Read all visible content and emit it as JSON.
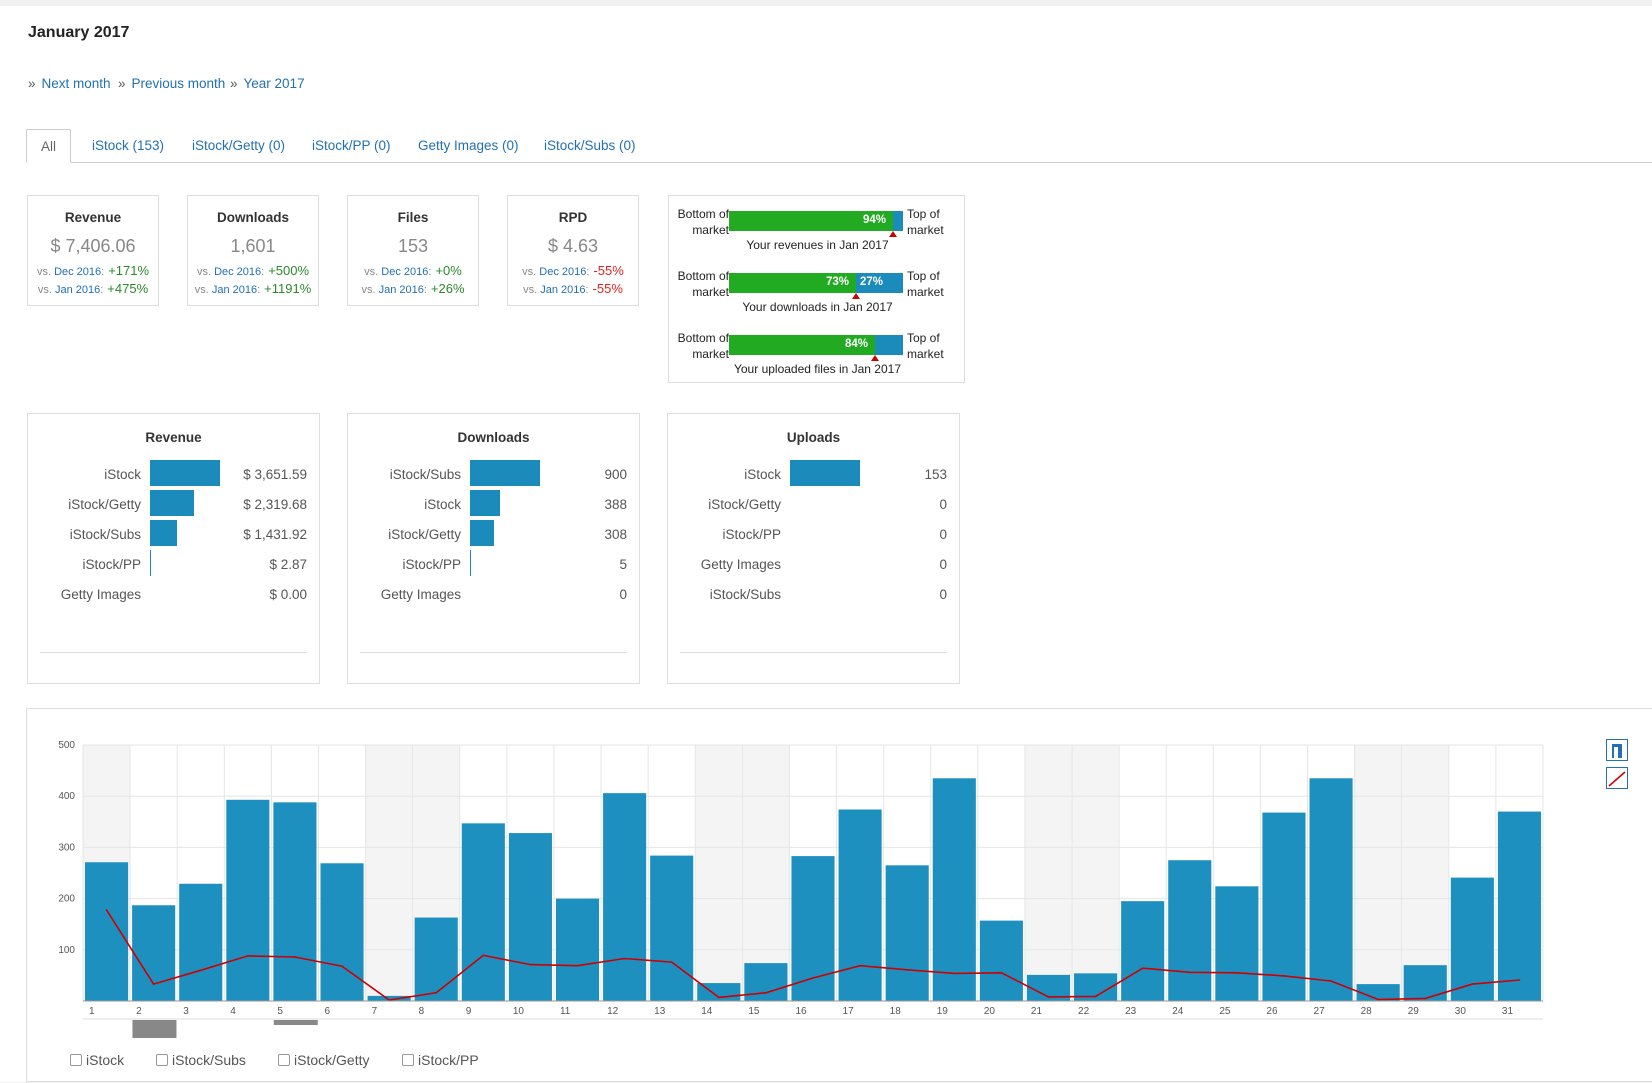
{
  "header": {
    "title": "January 2017"
  },
  "nav": {
    "raquo": "»",
    "next": "Next month",
    "previous": "Previous month",
    "year": "Year 2017"
  },
  "tabs": [
    {
      "label": "All",
      "active": true
    },
    {
      "label": "iStock (153)"
    },
    {
      "label": "iStock/Getty (0)"
    },
    {
      "label": "iStock/PP (0)"
    },
    {
      "label": "Getty Images (0)"
    },
    {
      "label": "iStock/Subs (0)"
    }
  ],
  "kpis": [
    {
      "title": "Revenue",
      "value": "$ 7,406.06",
      "rows": [
        {
          "vs": "vs.",
          "period": "Dec 2016",
          "change": "+171%",
          "sign": "pos"
        },
        {
          "vs": "vs.",
          "period": "Jan 2016",
          "change": "+475%",
          "sign": "pos"
        }
      ]
    },
    {
      "title": "Downloads",
      "value": "1,601",
      "rows": [
        {
          "vs": "vs.",
          "period": "Dec 2016",
          "change": "+500%",
          "sign": "pos"
        },
        {
          "vs": "vs.",
          "period": "Jan 2016",
          "change": "+1191%",
          "sign": "pos"
        }
      ]
    },
    {
      "title": "Files",
      "value": "153",
      "rows": [
        {
          "vs": "vs.",
          "period": "Dec 2016",
          "change": "+0%",
          "sign": "pos"
        },
        {
          "vs": "vs.",
          "period": "Jan 2016",
          "change": "+26%",
          "sign": "pos"
        }
      ]
    },
    {
      "title": "RPD",
      "value": "$ 4.63",
      "rows": [
        {
          "vs": "vs.",
          "period": "Dec 2016",
          "change": "-55%",
          "sign": "neg"
        },
        {
          "vs": "vs.",
          "period": "Jan 2016",
          "change": "-55%",
          "sign": "neg"
        }
      ]
    }
  ],
  "market": {
    "left_label": "Bottom of market",
    "right_label": "Top of market",
    "rows": [
      {
        "green_pct": 94,
        "green_label": "94%",
        "blue_label": "",
        "caption": "Your revenues in Jan 2017"
      },
      {
        "green_pct": 73,
        "green_label": "73%",
        "blue_label": "27%",
        "caption": "Your downloads in Jan 2017"
      },
      {
        "green_pct": 84,
        "green_label": "84%",
        "blue_label": "",
        "caption": "Your uploaded files in Jan 2017"
      }
    ],
    "colors": {
      "green": "#22aa22",
      "blue": "#1a8bba",
      "marker": "#cc0000"
    }
  },
  "breakdowns": [
    {
      "title": "Revenue",
      "rows": [
        {
          "label": "iStock",
          "value": "$ 3,651.59",
          "amount": 3651.59
        },
        {
          "label": "iStock/Getty",
          "value": "$ 2,319.68",
          "amount": 2319.68
        },
        {
          "label": "iStock/Subs",
          "value": "$ 1,431.92",
          "amount": 1431.92
        },
        {
          "label": "iStock/PP",
          "value": "$ 2.87",
          "amount": 2.87
        },
        {
          "label": "Getty Images",
          "value": "$ 0.00",
          "amount": 0
        }
      ]
    },
    {
      "title": "Downloads",
      "rows": [
        {
          "label": "iStock/Subs",
          "value": "900",
          "amount": 900
        },
        {
          "label": "iStock",
          "value": "388",
          "amount": 388
        },
        {
          "label": "iStock/Getty",
          "value": "308",
          "amount": 308
        },
        {
          "label": "iStock/PP",
          "value": "5",
          "amount": 5
        },
        {
          "label": "Getty Images",
          "value": "0",
          "amount": 0
        }
      ]
    },
    {
      "title": "Uploads",
      "rows": [
        {
          "label": "iStock",
          "value": "153",
          "amount": 153
        },
        {
          "label": "iStock/Getty",
          "value": "0",
          "amount": 0
        },
        {
          "label": "iStock/PP",
          "value": "0",
          "amount": 0
        },
        {
          "label": "Getty Images",
          "value": "0",
          "amount": 0
        },
        {
          "label": "iStock/Subs",
          "value": "0",
          "amount": 0
        }
      ]
    }
  ],
  "chart_data": {
    "type": "bar",
    "categories": [
      "1",
      "2",
      "3",
      "4",
      "5",
      "6",
      "7",
      "8",
      "9",
      "10",
      "11",
      "12",
      "13",
      "14",
      "15",
      "16",
      "17",
      "18",
      "19",
      "20",
      "21",
      "22",
      "23",
      "24",
      "25",
      "26",
      "27",
      "28",
      "29",
      "30",
      "31"
    ],
    "series": [
      {
        "type": "bar",
        "values": [
          271,
          187,
          229,
          393,
          388,
          269,
          10,
          163,
          347,
          328,
          200,
          406,
          284,
          35,
          74,
          283,
          374,
          265,
          435,
          157,
          51,
          54,
          195,
          275,
          224,
          368,
          435,
          33,
          70,
          241,
          370
        ],
        "color": "#1e90c0"
      },
      {
        "type": "line",
        "values": [
          178,
          33,
          60,
          88,
          86,
          68,
          2,
          16,
          89,
          71,
          69,
          83,
          76,
          7,
          16,
          45,
          69,
          61,
          54,
          55,
          8,
          9,
          64,
          56,
          55,
          49,
          39,
          3,
          5,
          33,
          41
        ],
        "color": "#cc0000"
      }
    ],
    "yticks": [
      100,
      200,
      300,
      400,
      500
    ],
    "ylim": [
      0,
      500
    ],
    "grid": true,
    "weekend_days": [
      1,
      7,
      8,
      14,
      15,
      21,
      22,
      28,
      29
    ],
    "legend": [
      "iStock",
      "iStock/Subs",
      "iStock/Getty",
      "iStock/PP"
    ],
    "legend_placement": "bottom-left",
    "controls": [
      "bar-chart-icon",
      "line-chart-icon"
    ]
  }
}
